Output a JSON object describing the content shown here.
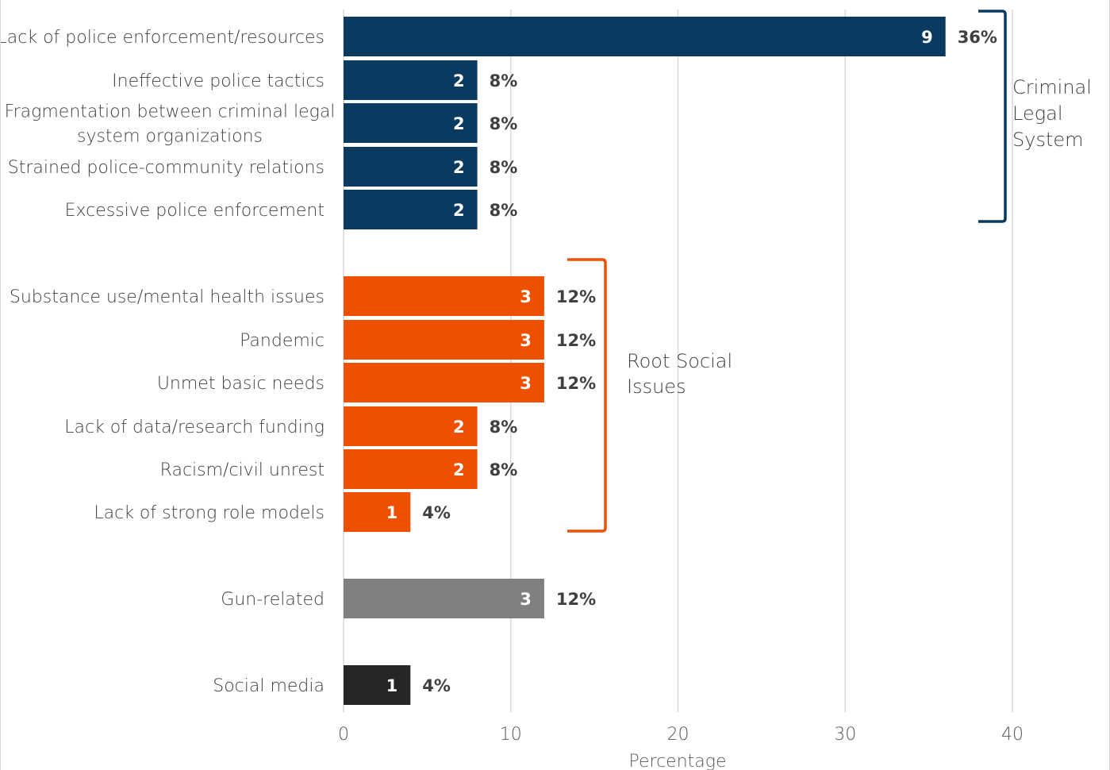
{
  "chart_data": {
    "type": "bar",
    "orientation": "horizontal",
    "xlabel": "Percentage",
    "xlim": [
      0,
      40
    ],
    "xticks": [
      0,
      10,
      20,
      30,
      40
    ],
    "grid": true,
    "categories": [
      "Lack of police enforcement/resources",
      "Ineffective police tactics",
      "Fragmentation between criminal legal system organizations",
      "Strained police-community relations",
      "Excessive police enforcement",
      "Substance use/mental health issues",
      "Pandemic",
      "Unmet basic needs",
      "Lack of data/research funding",
      "Racism/civil unrest",
      "Lack of strong role models",
      "Gun-related",
      "Social media"
    ],
    "label_lines": [
      [
        "Lack of police enforcement/resources"
      ],
      [
        "Ineffective police tactics"
      ],
      [
        "Fragmentation between criminal legal",
        "system organizations"
      ],
      [
        "Strained police-community relations"
      ],
      [
        "Excessive police enforcement"
      ],
      [
        "Substance use/mental health issues"
      ],
      [
        "Pandemic"
      ],
      [
        "Unmet basic needs"
      ],
      [
        "Lack of data/research funding"
      ],
      [
        "Racism/civil unrest"
      ],
      [
        "Lack of strong role models"
      ],
      [
        "Gun-related"
      ],
      [
        "Social media"
      ]
    ],
    "values": [
      36,
      8,
      8,
      8,
      8,
      12,
      12,
      12,
      8,
      8,
      4,
      12,
      4
    ],
    "counts": [
      9,
      2,
      2,
      2,
      2,
      3,
      3,
      3,
      2,
      2,
      1,
      3,
      1
    ],
    "percent_labels": [
      "36%",
      "8%",
      "8%",
      "8%",
      "8%",
      "12%",
      "12%",
      "12%",
      "8%",
      "8%",
      "4%",
      "12%",
      "4%"
    ],
    "groups": [
      {
        "lines": [
          "Criminal",
          "Legal",
          "System"
        ],
        "color": "#0b3a60",
        "indices": [
          0,
          1,
          2,
          3,
          4
        ]
      },
      {
        "lines": [
          "Root Social",
          "Issues"
        ],
        "color": "#ee5000",
        "indices": [
          5,
          6,
          7,
          8,
          9,
          10
        ]
      },
      {
        "lines": [],
        "color": "#808080",
        "indices": [
          11
        ]
      },
      {
        "lines": [],
        "color": "#262626",
        "indices": [
          12
        ]
      }
    ],
    "colors": {
      "grid": "#d9d9d9"
    }
  }
}
